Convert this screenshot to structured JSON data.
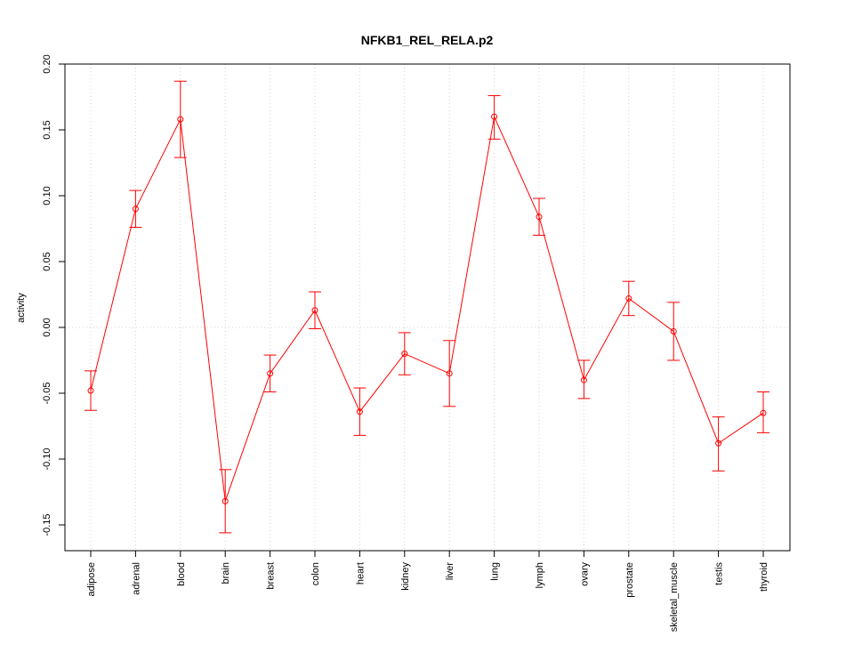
{
  "chart_data": {
    "type": "line",
    "title": "NFKB1_REL_RELA.p2",
    "xlabel": "",
    "ylabel": "activity",
    "ylim": [
      -0.17,
      0.2
    ],
    "yticks": [
      -0.15,
      -0.1,
      -0.05,
      0.0,
      0.05,
      0.1,
      0.15,
      0.2
    ],
    "ytick_labels": [
      "-0.15",
      "-0.10",
      "-0.05",
      "0.00",
      "0.05",
      "0.10",
      "0.15",
      "0.20"
    ],
    "categories": [
      "adipose",
      "adrenal",
      "blood",
      "brain",
      "breast",
      "colon",
      "heart",
      "kidney",
      "liver",
      "lung",
      "lymph",
      "ovary",
      "prostate",
      "skeletal_muscle",
      "testis",
      "thyroid"
    ],
    "series": [
      {
        "values": [
          -0.048,
          0.09,
          0.158,
          -0.132,
          -0.035,
          0.013,
          -0.064,
          -0.02,
          -0.035,
          0.16,
          0.084,
          -0.04,
          0.022,
          -0.003,
          -0.088,
          -0.065
        ],
        "upper": [
          -0.033,
          0.104,
          0.187,
          -0.108,
          -0.021,
          0.027,
          -0.046,
          -0.004,
          -0.01,
          0.176,
          0.098,
          -0.025,
          0.035,
          0.019,
          -0.068,
          -0.049
        ],
        "lower": [
          -0.063,
          0.076,
          0.129,
          -0.156,
          -0.049,
          -0.001,
          -0.082,
          -0.036,
          -0.06,
          0.143,
          0.07,
          -0.054,
          0.009,
          -0.025,
          -0.109,
          -0.08
        ]
      }
    ],
    "colors": {
      "series": "#ff0000",
      "grid": "#d3d3d3",
      "axis": "#000000"
    },
    "grid": true,
    "error_bars": true
  }
}
